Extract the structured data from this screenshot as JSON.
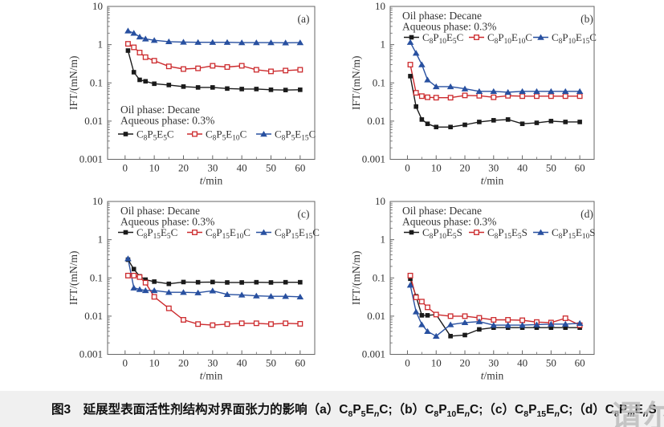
{
  "figure": {
    "ylabel": "IFT/(mN/m)",
    "xlabel": {
      "var": "t",
      "unit": "/min"
    },
    "colors": {
      "black": "#1a1a1a",
      "red": "#cc2a2d",
      "blue": "#2850a0",
      "axis": "#666666",
      "text": "#333333",
      "caption_bar": "#f0f0f0"
    }
  },
  "chart_data": [
    {
      "panel_tag": "(a)",
      "type": "line",
      "yscale": "log",
      "xlim": [
        -6,
        65
      ],
      "ylim": [
        0.001,
        10
      ],
      "xticks": [
        0,
        10,
        20,
        30,
        40,
        50,
        60
      ],
      "ytick_labels": [
        "10",
        "1",
        "0.1",
        "0.01",
        "0.001"
      ],
      "xlabel": {
        "var": "t",
        "unit": "/min"
      },
      "ylabel": "IFT/(mN/m)",
      "annotation": [
        "Oil phase: Decane",
        "Aqueous phase: 0.3%"
      ],
      "legend_area": "lower-left",
      "x": [
        1,
        3,
        5,
        7,
        10,
        15,
        20,
        25,
        30,
        35,
        40,
        45,
        50,
        55,
        60
      ],
      "series": [
        {
          "label": "C_8P_5E_5C",
          "marker": "square-filled",
          "color": "#1a1a1a",
          "values": [
            0.7,
            0.19,
            0.12,
            0.11,
            0.095,
            0.088,
            0.08,
            0.076,
            0.076,
            0.071,
            0.069,
            0.069,
            0.066,
            0.065,
            0.066
          ]
        },
        {
          "label": "C_8P_5E_10C",
          "marker": "square-open",
          "color": "#cc2a2d",
          "values": [
            1.05,
            0.85,
            0.62,
            0.47,
            0.38,
            0.27,
            0.23,
            0.24,
            0.28,
            0.26,
            0.28,
            0.22,
            0.2,
            0.21,
            0.22
          ]
        },
        {
          "label": "C_8P_5E_15C",
          "marker": "triangle-filled",
          "color": "#2850a0",
          "values": [
            2.3,
            2.0,
            1.6,
            1.42,
            1.3,
            1.2,
            1.17,
            1.15,
            1.15,
            1.15,
            1.13,
            1.13,
            1.13,
            1.12,
            1.13
          ]
        }
      ]
    },
    {
      "panel_tag": "(b)",
      "type": "line",
      "yscale": "log",
      "xlim": [
        -6,
        65
      ],
      "ylim": [
        0.001,
        10
      ],
      "xticks": [
        0,
        10,
        20,
        30,
        40,
        50,
        60
      ],
      "ytick_labels": [
        "10",
        "1",
        "0.1",
        "0.01",
        "0.001"
      ],
      "xlabel": {
        "var": "t",
        "unit": "/min"
      },
      "ylabel": "IFT/(mN/m)",
      "annotation": [
        "Oil phase: Decane",
        "Aqueous phase: 0.3%"
      ],
      "legend_area": "upper-left",
      "x": [
        1,
        3,
        5,
        7,
        10,
        15,
        20,
        25,
        30,
        35,
        40,
        45,
        50,
        55,
        60
      ],
      "series": [
        {
          "label": "C_8P_10E_5C",
          "marker": "square-filled",
          "color": "#1a1a1a",
          "values": [
            0.15,
            0.024,
            0.011,
            0.0085,
            0.007,
            0.007,
            0.008,
            0.0095,
            0.0105,
            0.011,
            0.0085,
            0.009,
            0.01,
            0.0095,
            0.0095
          ]
        },
        {
          "label": "C_8P_10E_10C",
          "marker": "square-open",
          "color": "#cc2a2d",
          "values": [
            0.3,
            0.055,
            0.045,
            0.042,
            0.041,
            0.041,
            0.047,
            0.046,
            0.042,
            0.046,
            0.045,
            0.045,
            0.045,
            0.045,
            0.045
          ]
        },
        {
          "label": "C_8P_10E_15C",
          "marker": "triangle-filled",
          "color": "#2850a0",
          "values": [
            1.15,
            0.6,
            0.3,
            0.12,
            0.08,
            0.08,
            0.07,
            0.06,
            0.06,
            0.057,
            0.06,
            0.06,
            0.06,
            0.06,
            0.06
          ]
        }
      ]
    },
    {
      "panel_tag": "(c)",
      "type": "line",
      "yscale": "log",
      "xlim": [
        -6,
        65
      ],
      "ylim": [
        0.001,
        10
      ],
      "xticks": [
        0,
        10,
        20,
        30,
        40,
        50,
        60
      ],
      "ytick_labels": [
        "10",
        "1",
        "0.1",
        "0.01",
        "0.001"
      ],
      "xlabel": {
        "var": "t",
        "unit": "/min"
      },
      "ylabel": "IFT/(mN/m)",
      "annotation": [
        "Oil phase: Decane",
        "Aqueous phase: 0.3%"
      ],
      "legend_area": "upper-left",
      "x": [
        1,
        3,
        5,
        7,
        10,
        15,
        20,
        25,
        30,
        35,
        40,
        45,
        50,
        55,
        60
      ],
      "series": [
        {
          "label": "C_8P_15E_5C",
          "marker": "square-filled",
          "color": "#1a1a1a",
          "values": [
            0.3,
            0.17,
            0.11,
            0.09,
            0.08,
            0.07,
            0.078,
            0.077,
            0.078,
            0.076,
            0.076,
            0.077,
            0.076,
            0.077,
            0.077
          ]
        },
        {
          "label": "C_8P_15E_10C",
          "marker": "square-open",
          "color": "#cc2a2d",
          "values": [
            0.115,
            0.115,
            0.105,
            0.075,
            0.032,
            0.016,
            0.008,
            0.0062,
            0.0058,
            0.0062,
            0.0065,
            0.0065,
            0.0062,
            0.0065,
            0.0063
          ]
        },
        {
          "label": "C_8P_15E_15C",
          "marker": "triangle-filled",
          "color": "#2850a0",
          "values": [
            0.32,
            0.055,
            0.05,
            0.047,
            0.047,
            0.042,
            0.042,
            0.041,
            0.046,
            0.037,
            0.036,
            0.034,
            0.033,
            0.033,
            0.032
          ]
        }
      ]
    },
    {
      "panel_tag": "(d)",
      "type": "line",
      "yscale": "log",
      "xlim": [
        -6,
        65
      ],
      "ylim": [
        0.001,
        10
      ],
      "xticks": [
        0,
        10,
        20,
        30,
        40,
        50,
        60
      ],
      "ytick_labels": [
        "10",
        "1",
        "0.1",
        "0.01",
        "0.001"
      ],
      "xlabel": {
        "var": "t",
        "unit": "/min"
      },
      "ylabel": "IFT/(mN/m)",
      "annotation": [
        "Oil phase: Decane",
        "Aqueous phase: 0.3%"
      ],
      "legend_area": "upper-left",
      "x": [
        1,
        3,
        5,
        7,
        10,
        15,
        20,
        25,
        30,
        35,
        40,
        45,
        50,
        55,
        60
      ],
      "series": [
        {
          "label": "C_8P_10E_5S",
          "marker": "square-filled",
          "color": "#1a1a1a",
          "values": [
            0.095,
            0.033,
            0.0105,
            0.0105,
            0.011,
            0.003,
            0.0032,
            0.0045,
            0.005,
            0.005,
            0.005,
            0.005,
            0.005,
            0.005,
            0.005
          ]
        },
        {
          "label": "C_8P_15E_5S",
          "marker": "square-open",
          "color": "#cc2a2d",
          "values": [
            0.115,
            0.031,
            0.024,
            0.017,
            0.011,
            0.01,
            0.01,
            0.009,
            0.008,
            0.008,
            0.0078,
            0.007,
            0.0068,
            0.0088,
            0.0058
          ]
        },
        {
          "label": "C_8P_15E_10S",
          "marker": "triangle-filled",
          "color": "#2850a0",
          "values": [
            0.065,
            0.013,
            0.006,
            0.004,
            0.003,
            0.006,
            0.0068,
            0.0072,
            0.0058,
            0.0058,
            0.0058,
            0.006,
            0.0062,
            0.0062,
            0.0065
          ]
        }
      ]
    }
  ],
  "caption": {
    "segments": [
      {
        "text": "图3　延展型表面活性剂结构对界面张力的影响（a）"
      },
      {
        "formula": "C_8P_5E_nC"
      },
      {
        "text": ";（b）"
      },
      {
        "formula": "C_8P_10E_nC"
      },
      {
        "text": ";（c）"
      },
      {
        "formula": "C_8P_15E_nC"
      },
      {
        "text": ";（d）"
      },
      {
        "formula": "C_8P_mE_nS"
      }
    ]
  },
  "watermark": "谓尔"
}
